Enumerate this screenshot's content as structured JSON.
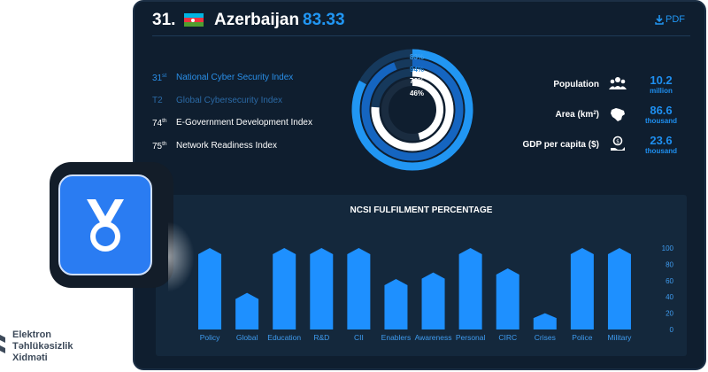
{
  "header": {
    "rank": "31.",
    "country": "Azerbaijan",
    "score": "83.33",
    "pdf_label": "PDF"
  },
  "indices": [
    {
      "rank": "31",
      "suffix": "st",
      "name": "National Cyber Security Index",
      "style": "blue"
    },
    {
      "rank": "T2",
      "suffix": "",
      "name": "Global Cybersecurity Index",
      "style": "dim"
    },
    {
      "rank": "74",
      "suffix": "th",
      "name": "E-Government Development Index",
      "style": "white"
    },
    {
      "rank": "75",
      "suffix": "th",
      "name": "Network Readiness Index",
      "style": "white"
    }
  ],
  "donut": {
    "labels": [
      "83%",
      "94%",
      "76%",
      "46%"
    ],
    "values": [
      83,
      94,
      76,
      46
    ],
    "colors": [
      "#2196f3",
      "#1565c0",
      "#ffffff",
      "#ffffff"
    ]
  },
  "stats": [
    {
      "label": "Population",
      "label_sup": "",
      "icon": "people-icon",
      "value": "10.2",
      "unit": "million"
    },
    {
      "label": "Area (km",
      "label_sup": "2",
      "label_end": ")",
      "icon": "country-map-icon",
      "value": "86.6",
      "unit": "thousand"
    },
    {
      "label": "GDP per capita ($)",
      "label_sup": "",
      "icon": "money-hand-icon",
      "value": "23.6",
      "unit": "thousand"
    }
  ],
  "chart_data": {
    "type": "bar",
    "title": "NCSI FULFILMENT PERCENTAGE",
    "categories": [
      "Policy",
      "Global",
      "Education",
      "R&D",
      "CII",
      "Enablers",
      "Awareness",
      "Personal",
      "CIRC",
      "Crises",
      "Police",
      "Military"
    ],
    "values": [
      100,
      45,
      100,
      100,
      100,
      62,
      70,
      100,
      75,
      20,
      100,
      100
    ],
    "ylim": [
      0,
      100
    ],
    "yticks": [
      "0",
      "20",
      "40",
      "60",
      "80",
      "100"
    ],
    "color": "#1e90ff"
  },
  "org": {
    "line1": "Elektron",
    "line2": "Təhlükəsizlik",
    "line3": "Xidməti"
  },
  "colors": {
    "accent": "#2196f3",
    "card_bg": "#0f1e2f",
    "tile": "#2a7cf2"
  }
}
